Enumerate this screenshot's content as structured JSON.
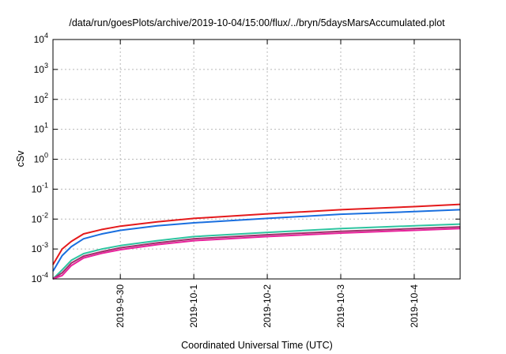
{
  "chart_data": {
    "type": "line",
    "title": "/data/run/goesPlots/archive/2019-10-04/15:00/flux/../bryn/5daysMarsAccumulated.plot",
    "xlabel": "Coordinated Universal Time (UTC)",
    "ylabel": "cSv",
    "xlim": [
      "2019-09-29T02:00",
      "2019-10-04T15:00"
    ],
    "ylim": [
      0.0001,
      10000
    ],
    "yscale": "log",
    "grid": true,
    "legend": "none",
    "x_ticks": [
      "2019-9-30",
      "2019-10-1",
      "2019-10-2",
      "2019-10-3",
      "2019-10-4"
    ],
    "y_ticks": [
      {
        "base": "10",
        "exp": "-4",
        "value": 0.0001
      },
      {
        "base": "10",
        "exp": "-3",
        "value": 0.001
      },
      {
        "base": "10",
        "exp": "-2",
        "value": 0.01
      },
      {
        "base": "10",
        "exp": "-1",
        "value": 0.1
      },
      {
        "base": "10",
        "exp": "0",
        "value": 1
      },
      {
        "base": "10",
        "exp": "1",
        "value": 10
      },
      {
        "base": "10",
        "exp": "2",
        "value": 100
      },
      {
        "base": "10",
        "exp": "3",
        "value": 1000
      },
      {
        "base": "10",
        "exp": "4",
        "value": 10000
      }
    ],
    "series": [
      {
        "color": "#e41a1c",
        "x": [
          "2019-09-29T02:00",
          "2019-09-29T05:00",
          "2019-09-29T08:00",
          "2019-09-29T12:00",
          "2019-09-29T18:00",
          "2019-09-30T00:00",
          "2019-09-30T12:00",
          "2019-10-01T00:00",
          "2019-10-02T00:00",
          "2019-10-03T00:00",
          "2019-10-04T00:00",
          "2019-10-04T15:00"
        ],
        "y": [
          0.0003,
          0.001,
          0.0018,
          0.0032,
          0.0045,
          0.0058,
          0.0081,
          0.0105,
          0.015,
          0.0205,
          0.026,
          0.031
        ]
      },
      {
        "color": "#1a6fdf",
        "x": [
          "2019-09-29T02:00",
          "2019-09-29T05:00",
          "2019-09-29T08:00",
          "2019-09-29T12:00",
          "2019-09-29T18:00",
          "2019-09-30T00:00",
          "2019-09-30T12:00",
          "2019-10-01T00:00",
          "2019-10-02T00:00",
          "2019-10-03T00:00",
          "2019-10-04T00:00",
          "2019-10-04T15:00"
        ],
        "y": [
          0.00018,
          0.0006,
          0.0012,
          0.0022,
          0.0032,
          0.0042,
          0.006,
          0.0075,
          0.0105,
          0.0145,
          0.0178,
          0.0205
        ]
      },
      {
        "color": "#2ec4a0",
        "x": [
          "2019-09-29T02:00",
          "2019-09-29T05:00",
          "2019-09-29T08:00",
          "2019-09-29T12:00",
          "2019-09-29T18:00",
          "2019-09-30T00:00",
          "2019-09-30T12:00",
          "2019-10-01T00:00",
          "2019-10-02T00:00",
          "2019-10-03T00:00",
          "2019-10-04T00:00",
          "2019-10-04T15:00"
        ],
        "y": [
          0.0001,
          0.0002,
          0.00042,
          0.0007,
          0.001,
          0.0013,
          0.0019,
          0.0026,
          0.0036,
          0.0048,
          0.006,
          0.0068
        ]
      },
      {
        "color": "#a0306a",
        "x": [
          "2019-09-29T02:00",
          "2019-09-29T05:00",
          "2019-09-29T08:00",
          "2019-09-29T12:00",
          "2019-09-29T18:00",
          "2019-09-30T00:00",
          "2019-09-30T12:00",
          "2019-10-01T00:00",
          "2019-10-02T00:00",
          "2019-10-03T00:00",
          "2019-10-04T00:00",
          "2019-10-04T15:00"
        ],
        "y": [
          0.0001,
          0.00016,
          0.00034,
          0.00058,
          0.00082,
          0.0011,
          0.0016,
          0.0022,
          0.003,
          0.0039,
          0.0048,
          0.0055
        ]
      },
      {
        "color": "#e8239c",
        "x": [
          "2019-09-29T02:00",
          "2019-09-29T05:00",
          "2019-09-29T08:00",
          "2019-09-29T12:00",
          "2019-09-29T18:00",
          "2019-09-30T00:00",
          "2019-09-30T12:00",
          "2019-10-01T00:00",
          "2019-10-02T00:00",
          "2019-10-03T00:00",
          "2019-10-04T00:00",
          "2019-10-04T15:00"
        ],
        "y": [
          0.0001,
          0.00013,
          0.00028,
          0.0005,
          0.00072,
          0.00095,
          0.0014,
          0.0019,
          0.0026,
          0.0034,
          0.0042,
          0.0048
        ]
      }
    ]
  }
}
